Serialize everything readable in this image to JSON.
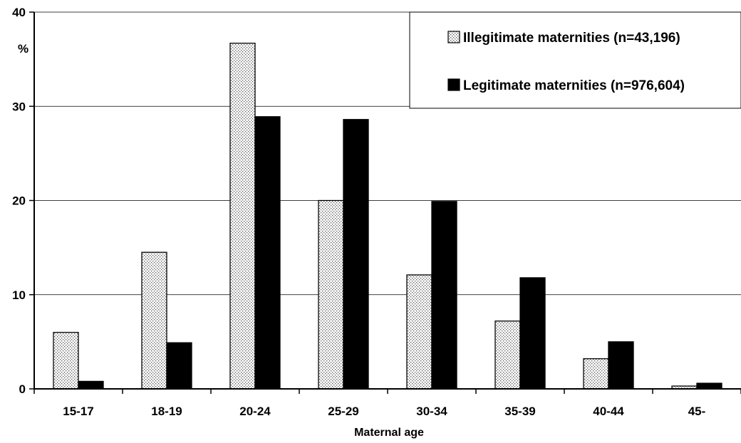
{
  "chart_data": {
    "type": "bar",
    "title": "",
    "xlabel": "Maternal age",
    "ylabel": "%",
    "ylim": [
      0,
      40
    ],
    "yticks": [
      0,
      10,
      20,
      30,
      40
    ],
    "grid": true,
    "legend_position": "top-right",
    "categories": [
      "15-17",
      "18-19",
      "20-24",
      "25-29",
      "30-34",
      "35-39",
      "40-44",
      "45-"
    ],
    "series": [
      {
        "name": "Illegitimate maternities (n=43,196)",
        "pattern": "dotted",
        "color": "#ffffff",
        "values": [
          6.0,
          14.5,
          36.7,
          20.0,
          12.1,
          7.2,
          3.2,
          0.3
        ]
      },
      {
        "name": "Legitimate maternities (n=976,604)",
        "pattern": "solid",
        "color": "#000000",
        "values": [
          0.8,
          4.9,
          28.9,
          28.6,
          19.9,
          11.8,
          5.0,
          0.6
        ]
      }
    ]
  }
}
